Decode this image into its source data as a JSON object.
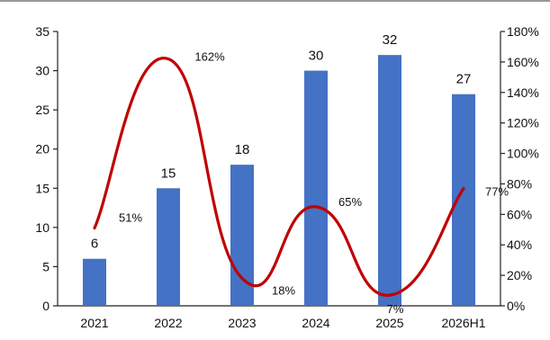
{
  "chart_data": {
    "type": "bar",
    "categories": [
      "2021",
      "2022",
      "2023",
      "2024",
      "2025",
      "2026H1"
    ],
    "series": [
      {
        "type": "bar",
        "axis": "left",
        "values": [
          6,
          15,
          18,
          30,
          32,
          27
        ],
        "data_labels": [
          "6",
          "15",
          "18",
          "30",
          "32",
          "27"
        ],
        "color": "#4472C4"
      },
      {
        "type": "line",
        "smooth": true,
        "axis": "right",
        "values": [
          51,
          162,
          18,
          65,
          7,
          77
        ],
        "data_labels": [
          "51%",
          "162%",
          "18%",
          "65%",
          "7%",
          "77%"
        ],
        "color": "#C00000"
      }
    ],
    "y_left": {
      "min": 0,
      "max": 35,
      "ticks": [
        0,
        5,
        10,
        15,
        20,
        25,
        30,
        35
      ],
      "tick_labels": [
        "0",
        "5",
        "10",
        "15",
        "20",
        "25",
        "30",
        "35"
      ]
    },
    "y_right": {
      "min": 0,
      "max": 180,
      "ticks": [
        0,
        20,
        40,
        60,
        80,
        100,
        120,
        140,
        160,
        180
      ],
      "tick_labels": [
        "0%",
        "20%",
        "40%",
        "60%",
        "80%",
        "100%",
        "120%",
        "140%",
        "160%",
        "180%"
      ]
    },
    "grid": false,
    "legend": "none"
  }
}
